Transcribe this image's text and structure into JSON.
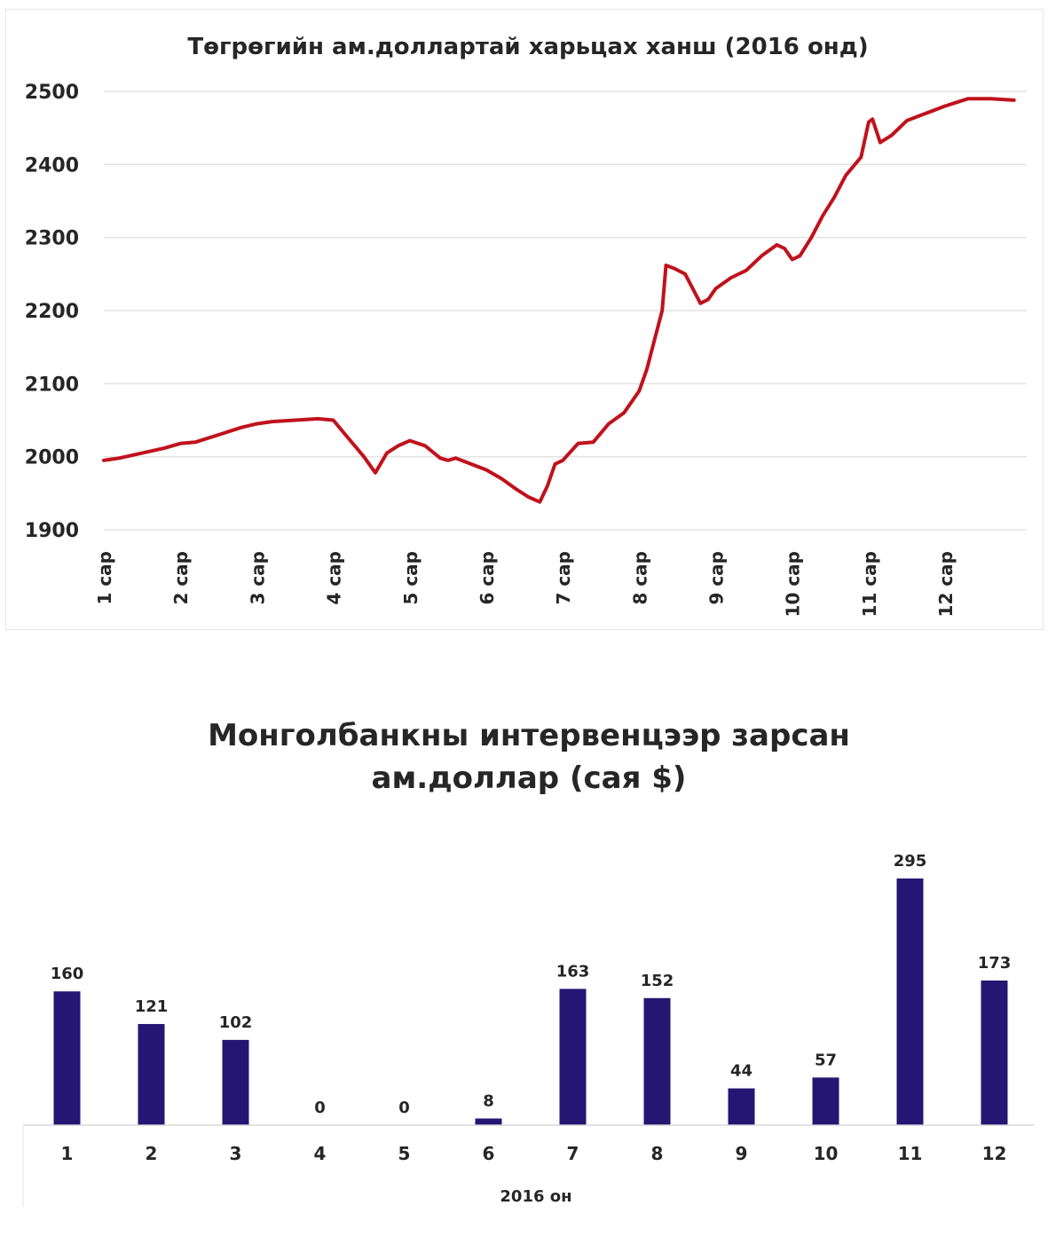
{
  "chart_data": [
    {
      "type": "line",
      "title": "Төгрөгийн ам.доллартай харьцах ханш (2016 онд)",
      "xlabel": "",
      "ylabel": "",
      "ylim": [
        1900,
        2500
      ],
      "yticks": [
        "2500",
        "2400",
        "2300",
        "2200",
        "2100",
        "2000",
        "1900"
      ],
      "xticks": [
        "1 сар",
        "2 сар",
        "3 сар",
        "4 сар",
        "5 сар",
        "6 сар",
        "7 сар",
        "8 сар",
        "9 сар",
        "10 сар",
        "11 сар",
        "12 сар"
      ],
      "xtick_months": [
        1,
        2,
        3,
        4,
        5,
        6,
        7,
        8,
        9,
        10,
        11,
        12
      ],
      "grid": true,
      "line_color": "#c0121c",
      "series": [
        {
          "x": [
            1.0,
            1.2,
            1.5,
            1.8,
            2.0,
            2.2,
            2.5,
            2.8,
            3.0,
            3.2,
            3.5,
            3.8,
            4.0,
            4.2,
            4.4,
            4.55,
            4.7,
            4.85,
            5.0,
            5.2,
            5.4,
            5.5,
            5.6,
            5.8,
            6.0,
            6.2,
            6.4,
            6.55,
            6.7,
            6.8,
            6.9,
            7.0,
            7.2,
            7.4,
            7.6,
            7.8,
            8.0,
            8.1,
            8.2,
            8.3,
            8.35,
            8.45,
            8.6,
            8.8,
            8.9,
            9.0,
            9.2,
            9.4,
            9.6,
            9.8,
            9.9,
            10.0,
            10.1,
            10.25,
            10.4,
            10.55,
            10.7,
            10.9,
            11.0,
            11.05,
            11.15,
            11.3,
            11.5,
            11.7,
            12.0,
            12.3,
            12.6,
            12.9
          ],
          "y": [
            1995,
            1998,
            2005,
            2012,
            2018,
            2020,
            2030,
            2040,
            2045,
            2048,
            2050,
            2052,
            2050,
            2025,
            2000,
            1978,
            2005,
            2015,
            2022,
            2015,
            1998,
            1995,
            1998,
            1990,
            1982,
            1970,
            1955,
            1945,
            1938,
            1960,
            1990,
            1995,
            2018,
            2020,
            2045,
            2060,
            2090,
            2120,
            2160,
            2200,
            2262,
            2258,
            2250,
            2210,
            2215,
            2230,
            2245,
            2255,
            2275,
            2290,
            2285,
            2270,
            2275,
            2300,
            2330,
            2355,
            2385,
            2410,
            2458,
            2462,
            2430,
            2440,
            2460,
            2468,
            2480,
            2490,
            2490,
            2488
          ]
        }
      ]
    },
    {
      "type": "bar",
      "title": "Монголбанкны интервенцээр зарсан ам.доллар (сая $)",
      "title_lines": [
        "Монголбанкны интервенцээр зарсан",
        "ам.доллар (сая $)"
      ],
      "xlabel": "2016 он",
      "ylabel": "",
      "ylim": [
        0,
        320
      ],
      "bar_color": "#241672",
      "categories": [
        "1",
        "2",
        "3",
        "4",
        "5",
        "6",
        "7",
        "8",
        "9",
        "10",
        "11",
        "12"
      ],
      "values": [
        160,
        121,
        102,
        0,
        0,
        8,
        163,
        152,
        44,
        57,
        295,
        173
      ],
      "value_labels": [
        "160",
        "121",
        "102",
        "0",
        "0",
        "8",
        "163",
        "152",
        "44",
        "57",
        "295",
        "173"
      ]
    }
  ]
}
